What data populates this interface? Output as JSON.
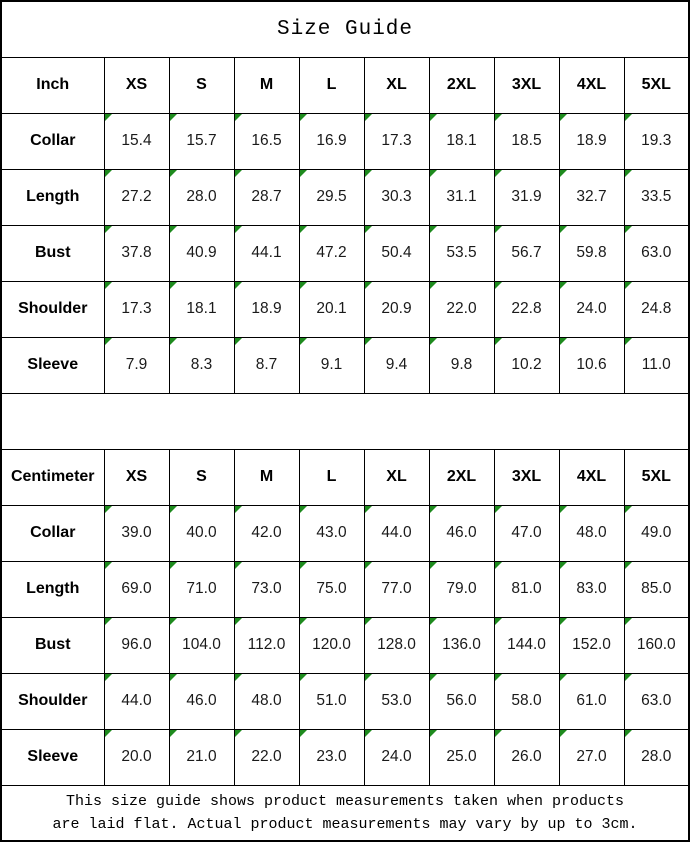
{
  "title": "Size Guide",
  "footer": {
    "line1": "This size guide shows product measurements taken when products",
    "line2": "are laid flat. Actual product measurements may vary by up to 3cm."
  },
  "colors": {
    "triangle_green": "#1e8b1e",
    "grid_border": "#000000",
    "background": "#ffffff",
    "number_text": "#1a1a1a"
  },
  "chart_data": [
    {
      "type": "table",
      "title": "Size Guide",
      "unit": "Inch",
      "columns": [
        "XS",
        "S",
        "M",
        "L",
        "XL",
        "2XL",
        "3XL",
        "4XL",
        "5XL"
      ],
      "rows": [
        {
          "label": "Collar",
          "values": [
            "15.4",
            "15.7",
            "16.5",
            "16.9",
            "17.3",
            "18.1",
            "18.5",
            "18.9",
            "19.3"
          ]
        },
        {
          "label": "Length",
          "values": [
            "27.2",
            "28.0",
            "28.7",
            "29.5",
            "30.3",
            "31.1",
            "31.9",
            "32.7",
            "33.5"
          ]
        },
        {
          "label": "Bust",
          "values": [
            "37.8",
            "40.9",
            "44.1",
            "47.2",
            "50.4",
            "53.5",
            "56.7",
            "59.8",
            "63.0"
          ]
        },
        {
          "label": "Shoulder",
          "values": [
            "17.3",
            "18.1",
            "18.9",
            "20.1",
            "20.9",
            "22.0",
            "22.8",
            "24.0",
            "24.8"
          ]
        },
        {
          "label": "Sleeve",
          "values": [
            "7.9",
            "8.3",
            "8.7",
            "9.1",
            "9.4",
            "9.8",
            "10.2",
            "10.6",
            "11.0"
          ]
        }
      ]
    },
    {
      "type": "table",
      "title": "Size Guide",
      "unit": "Centimeter",
      "columns": [
        "XS",
        "S",
        "M",
        "L",
        "XL",
        "2XL",
        "3XL",
        "4XL",
        "5XL"
      ],
      "rows": [
        {
          "label": "Collar",
          "values": [
            "39.0",
            "40.0",
            "42.0",
            "43.0",
            "44.0",
            "46.0",
            "47.0",
            "48.0",
            "49.0"
          ]
        },
        {
          "label": "Length",
          "values": [
            "69.0",
            "71.0",
            "73.0",
            "75.0",
            "77.0",
            "79.0",
            "81.0",
            "83.0",
            "85.0"
          ]
        },
        {
          "label": "Bust",
          "values": [
            "96.0",
            "104.0",
            "112.0",
            "120.0",
            "128.0",
            "136.0",
            "144.0",
            "152.0",
            "160.0"
          ]
        },
        {
          "label": "Shoulder",
          "values": [
            "44.0",
            "46.0",
            "48.0",
            "51.0",
            "53.0",
            "56.0",
            "58.0",
            "61.0",
            "63.0"
          ]
        },
        {
          "label": "Sleeve",
          "values": [
            "20.0",
            "21.0",
            "22.0",
            "23.0",
            "24.0",
            "25.0",
            "26.0",
            "27.0",
            "28.0"
          ]
        }
      ]
    }
  ]
}
